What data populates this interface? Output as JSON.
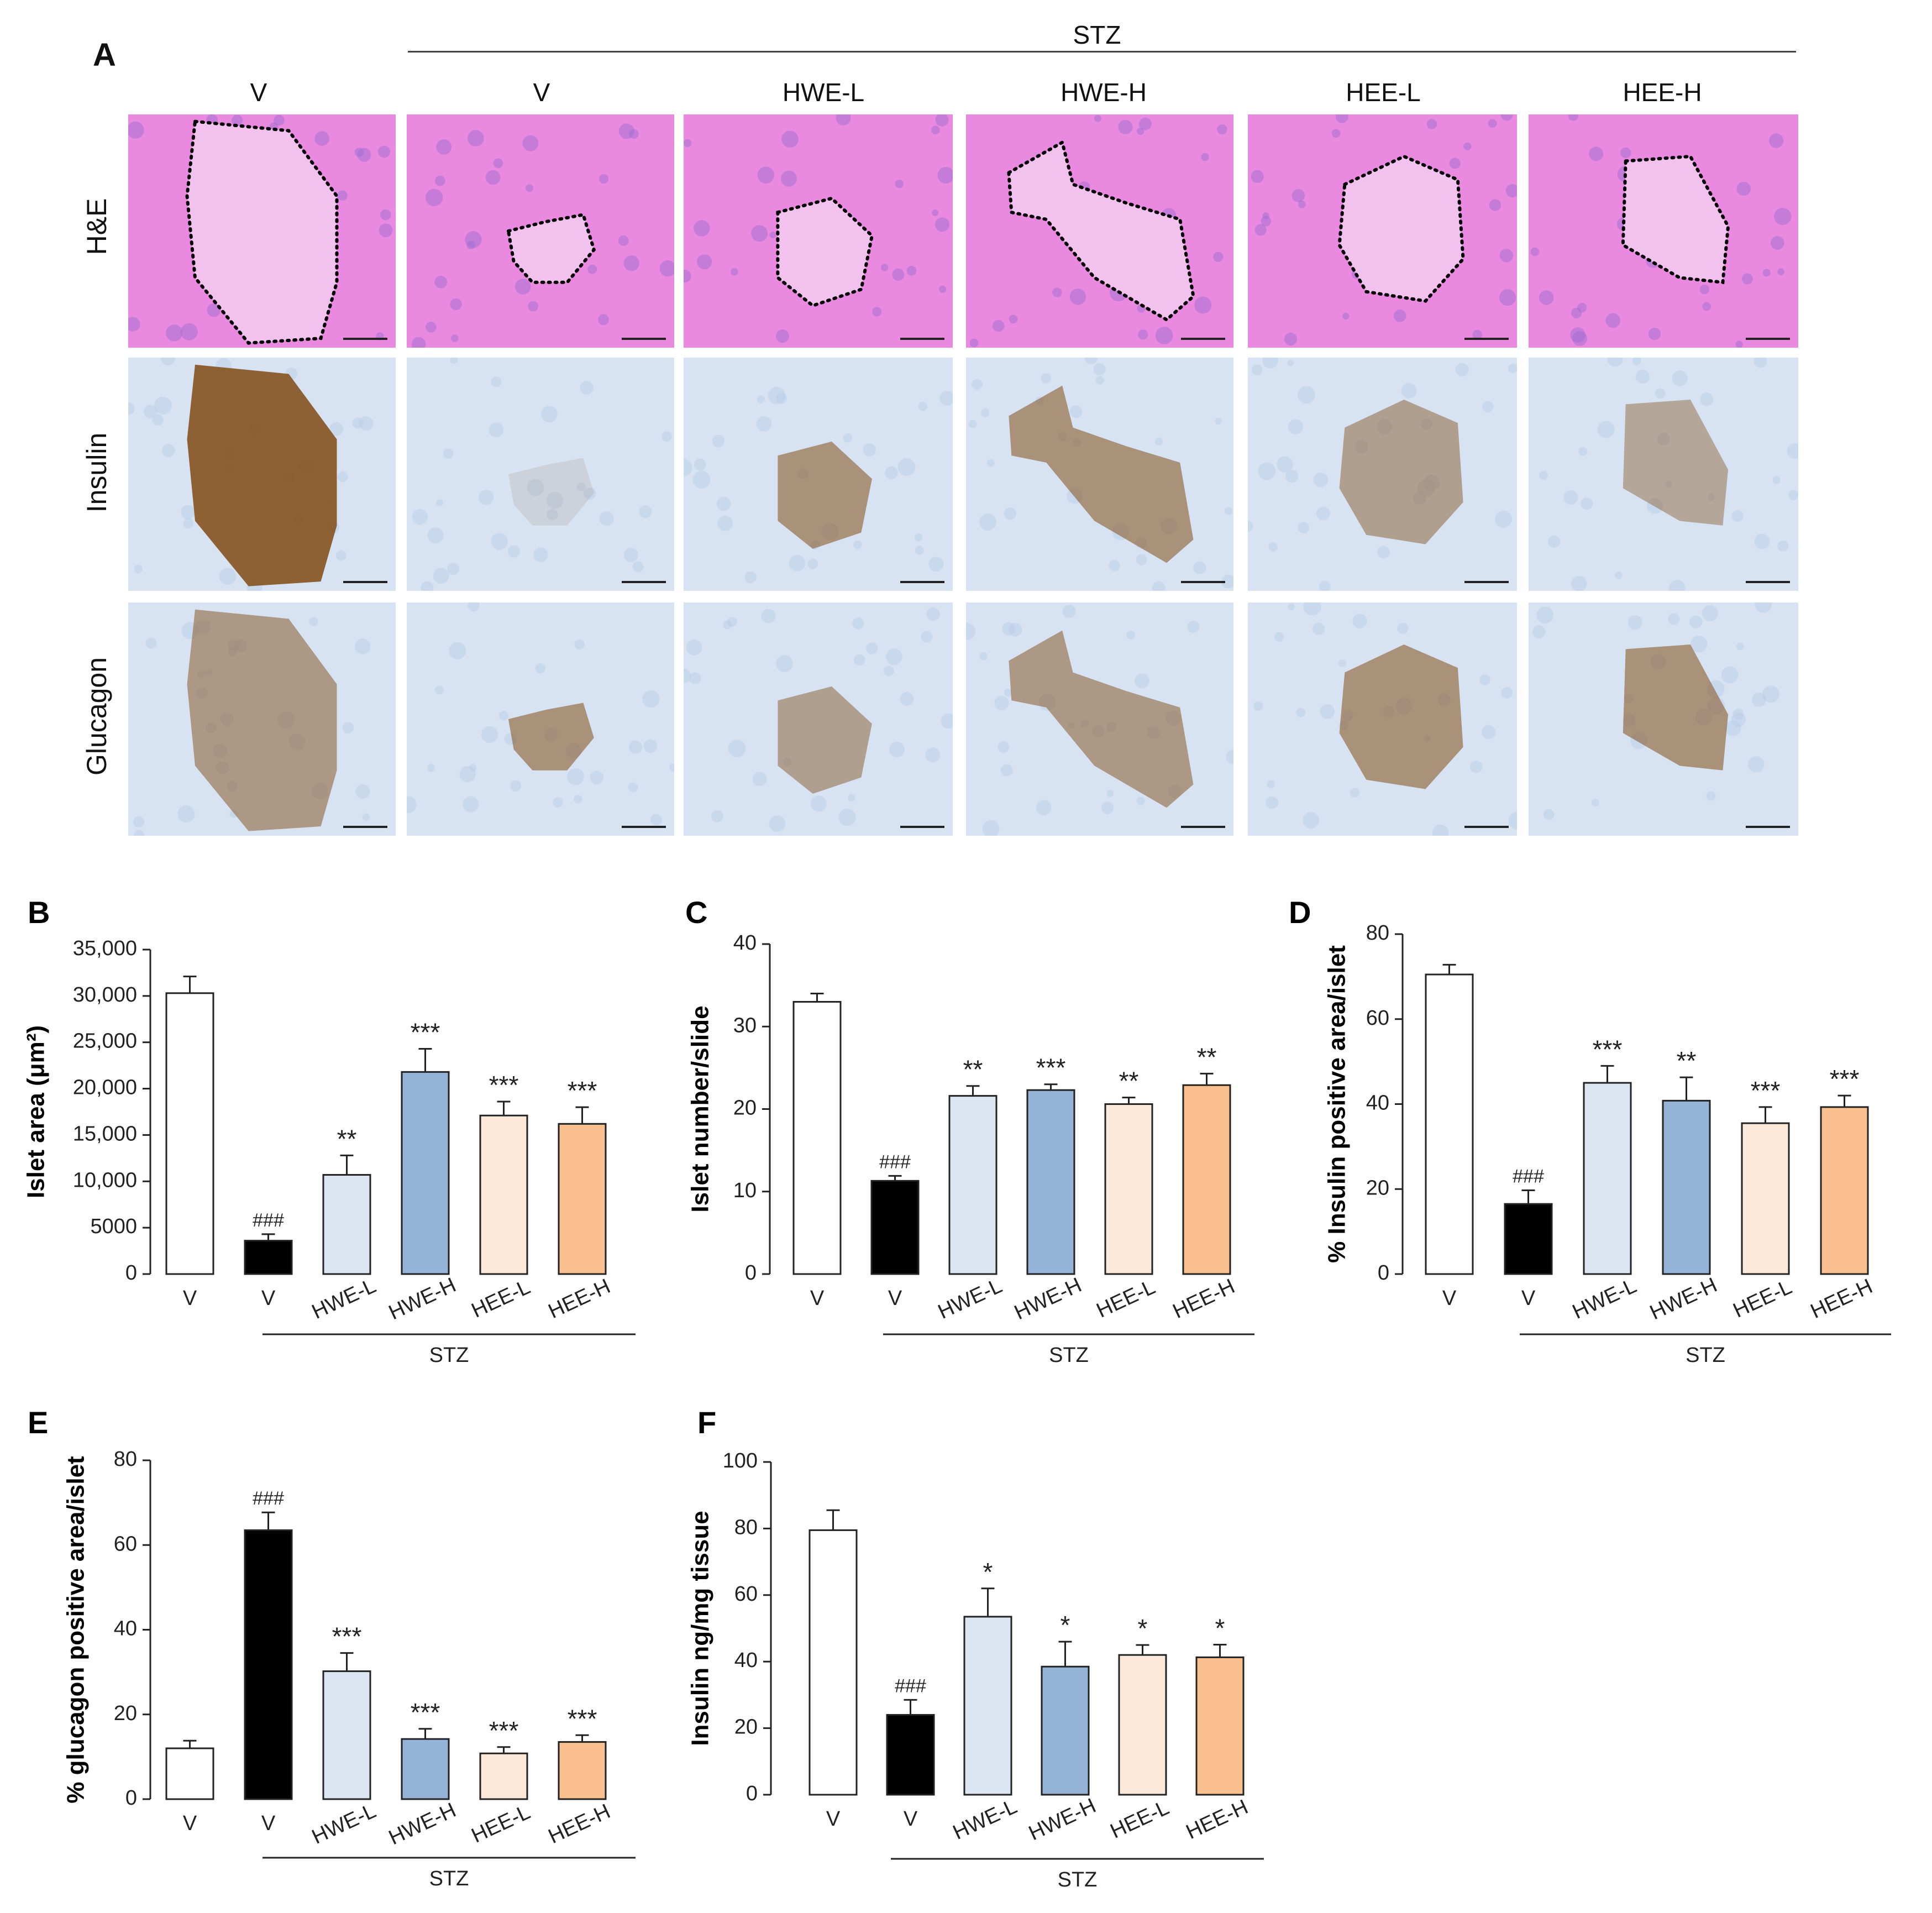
{
  "panel_a": {
    "letter": "A",
    "stz_label": "STZ",
    "columns": [
      "V",
      "V",
      "HWE-L",
      "HWE-H",
      "HEE-L",
      "HEE-H"
    ],
    "rows": [
      "H&E",
      "Insulin",
      "Glucagon"
    ]
  },
  "colors": {
    "V_normal": "#ffffff",
    "V_stz": "#000000",
    "HWE-L": "#dce6f2",
    "HWE-H": "#95b3d7",
    "HEE-L": "#fde9d9",
    "HEE-H": "#fac090",
    "he_tissue": "#e98ae0",
    "ihc_background": "#d7e3f3",
    "ihc_stain": "#8a5a2a"
  },
  "chart_data": [
    {
      "letter": "B",
      "type": "bar",
      "ylabel": "Islet area (μm²)",
      "categories": [
        "V",
        "V",
        "HWE-L",
        "HWE-H",
        "HEE-L",
        "HEE-H"
      ],
      "group_label": "STZ",
      "values": [
        30300,
        3600,
        10700,
        21800,
        17100,
        16200
      ],
      "errors": [
        1800,
        700,
        2100,
        2500,
        1500,
        1800
      ],
      "annotations": [
        "",
        "###",
        "**",
        "***",
        "***",
        "***"
      ],
      "ylim": [
        0,
        35000
      ],
      "yticks": [
        0,
        5000,
        10000,
        15000,
        20000,
        25000,
        30000,
        35000
      ],
      "ytick_labels": [
        "0",
        "5000",
        "10,000",
        "15,000",
        "20,000",
        "25,000",
        "30,000",
        "35,000"
      ]
    },
    {
      "letter": "C",
      "type": "bar",
      "ylabel": "Islet number/slide",
      "categories": [
        "V",
        "V",
        "HWE-L",
        "HWE-H",
        "HEE-L",
        "HEE-H"
      ],
      "group_label": "STZ",
      "values": [
        33,
        11.3,
        21.6,
        22.3,
        20.6,
        22.9
      ],
      "errors": [
        1.0,
        0.6,
        1.2,
        0.7,
        0.8,
        1.4
      ],
      "annotations": [
        "",
        "###",
        "**",
        "***",
        "**",
        "**"
      ],
      "ylim": [
        0,
        40
      ],
      "yticks": [
        0,
        10,
        20,
        30,
        40
      ],
      "ytick_labels": [
        "0",
        "10",
        "20",
        "30",
        "40"
      ]
    },
    {
      "letter": "D",
      "type": "bar",
      "ylabel": "% Insulin positive area/islet",
      "categories": [
        "V",
        "V",
        "HWE-L",
        "HWE-H",
        "HEE-L",
        "HEE-H"
      ],
      "group_label": "STZ",
      "values": [
        70.5,
        16.5,
        45.0,
        40.8,
        35.5,
        39.3
      ],
      "errors": [
        2.3,
        3.2,
        4.0,
        5.5,
        3.8,
        2.7
      ],
      "annotations": [
        "",
        "###",
        "***",
        "**",
        "***",
        "***"
      ],
      "ylim": [
        0,
        80
      ],
      "yticks": [
        0,
        20,
        40,
        60,
        80
      ],
      "ytick_labels": [
        "0",
        "20",
        "40",
        "60",
        "80"
      ]
    },
    {
      "letter": "E",
      "type": "bar",
      "ylabel": "% glucagon positive area/islet",
      "categories": [
        "V",
        "V",
        "HWE-L",
        "HWE-H",
        "HEE-L",
        "HEE-H"
      ],
      "group_label": "STZ",
      "values": [
        12.0,
        63.5,
        30.2,
        14.2,
        10.8,
        13.5
      ],
      "errors": [
        1.8,
        4.2,
        4.3,
        2.4,
        1.5,
        1.6
      ],
      "annotations": [
        "",
        "###",
        "***",
        "***",
        "***",
        "***"
      ],
      "ylim": [
        0,
        80
      ],
      "yticks": [
        0,
        20,
        40,
        60,
        80
      ],
      "ytick_labels": [
        "0",
        "20",
        "40",
        "60",
        "80"
      ]
    },
    {
      "letter": "F",
      "type": "bar",
      "ylabel": "Insulin ng/mg tissue",
      "categories": [
        "V",
        "V",
        "HWE-L",
        "HWE-H",
        "HEE-L",
        "HEE-H"
      ],
      "group_label": "STZ",
      "values": [
        79.5,
        24.0,
        53.5,
        38.5,
        42.0,
        41.3
      ],
      "errors": [
        6.0,
        4.5,
        8.5,
        7.5,
        3.0,
        3.8
      ],
      "annotations": [
        "",
        "###",
        "*",
        "*",
        "*",
        "*"
      ],
      "ylim": [
        0,
        100
      ],
      "yticks": [
        0,
        20,
        40,
        60,
        80,
        100
      ],
      "ytick_labels": [
        "0",
        "20",
        "40",
        "60",
        "80",
        "100"
      ]
    }
  ]
}
